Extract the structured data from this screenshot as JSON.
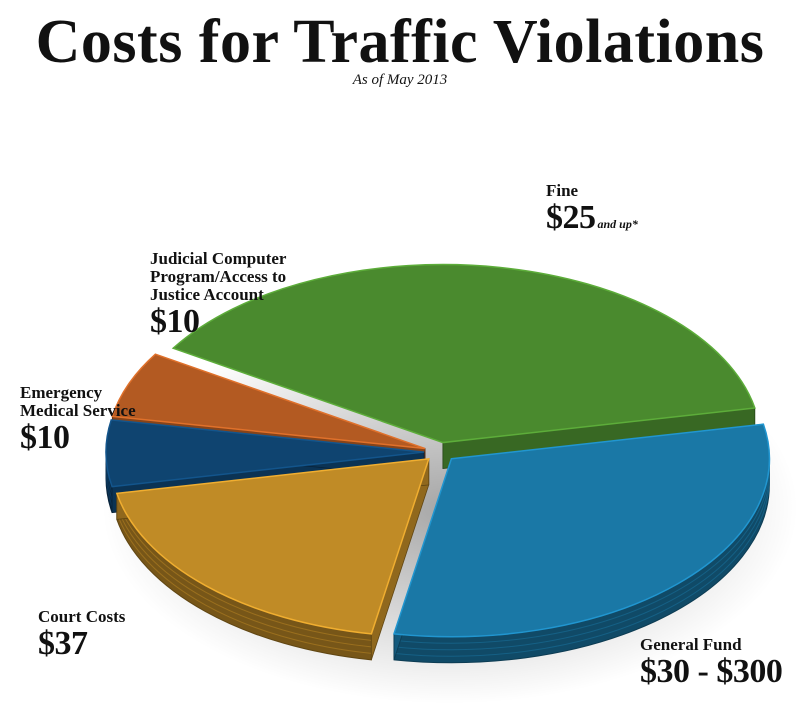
{
  "title": "Costs for Traffic Violations",
  "subtitle": "As of May 2013",
  "chart_data": {
    "type": "pie",
    "title": "Costs for Traffic Violations",
    "subtitle": "As of May 2013",
    "style": "3d-exploded",
    "legend": "none",
    "slices": [
      {
        "key": "fine",
        "label": "Fine",
        "amount_label": "$25",
        "note": "and up*",
        "share": 0.38,
        "color": "#4a8a2e"
      },
      {
        "key": "general",
        "label": "General Fund",
        "amount_label": "$30 - $300",
        "share": 0.31,
        "color": "#1a78a6"
      },
      {
        "key": "court",
        "label": "Court Costs",
        "amount_label": "$37",
        "share": 0.19,
        "color": "#c08b26"
      },
      {
        "key": "ems",
        "label": "Emergency Medical Service",
        "amount_label": "$10",
        "share": 0.06,
        "color": "#0f4470"
      },
      {
        "key": "judicial",
        "label": "Judicial Computer Program/Access to Justice Account",
        "amount_label": "$10",
        "share": 0.06,
        "color": "#b35a22"
      }
    ]
  }
}
